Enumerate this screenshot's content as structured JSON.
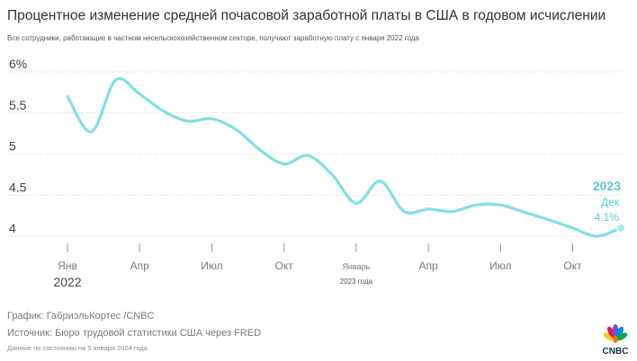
{
  "title": "Процентное изменение средней почасовой заработной платы в США в годовом исчислении",
  "subtitle": "Все сотрудники, работающие в частном несельскохозяйственном секторе, получают заработную плату с января 2022 года",
  "footer": {
    "credit": "График: ГабриэльКортес /CNBC",
    "source": "Источник: Бюро трудовой статистики США через FRED",
    "note": "Данные по состоянию на 5 января 2024 года"
  },
  "logo_text": "CNBC",
  "colors": {
    "line": "#7fe0e6",
    "highlight": "#5bc8d6",
    "grid": "#bdbdbd",
    "axis_text": "#7a7a7a"
  },
  "chart_data": {
    "type": "line",
    "title": "Процентное изменение средней почасовой заработной платы в США в годовом исчислении",
    "xlabel": "",
    "ylabel": "",
    "ylim": [
      4,
      6
    ],
    "y_ticks": [
      "6%",
      "5.5",
      "5",
      "4.5",
      "4"
    ],
    "y_tick_values": [
      6,
      5.5,
      5,
      4.5,
      4
    ],
    "x_ticks": [
      {
        "label": "Янв",
        "sublabel": "2022",
        "index": 0
      },
      {
        "label": "Апр",
        "sublabel": "",
        "index": 3
      },
      {
        "label": "Июл",
        "sublabel": "",
        "index": 6
      },
      {
        "label": "Окт",
        "sublabel": "",
        "index": 9
      },
      {
        "label": "Январь",
        "sublabel": "2023 года",
        "index": 12
      },
      {
        "label": "Апр",
        "sublabel": "",
        "index": 15
      },
      {
        "label": "Июл",
        "sublabel": "",
        "index": 18
      },
      {
        "label": "Окт",
        "sublabel": "",
        "index": 21
      }
    ],
    "categories": [
      "2022-01",
      "2022-02",
      "2022-03",
      "2022-04",
      "2022-05",
      "2022-06",
      "2022-07",
      "2022-08",
      "2022-09",
      "2022-10",
      "2022-11",
      "2022-12",
      "2023-01",
      "2023-02",
      "2023-03",
      "2023-04",
      "2023-05",
      "2023-06",
      "2023-07",
      "2023-08",
      "2023-09",
      "2023-10",
      "2023-11",
      "2023-12"
    ],
    "series": [
      {
        "name": "Средняя почасовая заработная плата, % г/г",
        "values": [
          5.7,
          5.27,
          5.9,
          5.73,
          5.52,
          5.4,
          5.43,
          5.3,
          5.05,
          4.88,
          4.98,
          4.75,
          4.4,
          4.67,
          4.3,
          4.33,
          4.3,
          4.38,
          4.38,
          4.29,
          4.2,
          4.1,
          4.0,
          4.1
        ]
      }
    ],
    "annotation": {
      "year": "2023",
      "month": "Дек",
      "value": "4.1%",
      "index": 23
    }
  }
}
